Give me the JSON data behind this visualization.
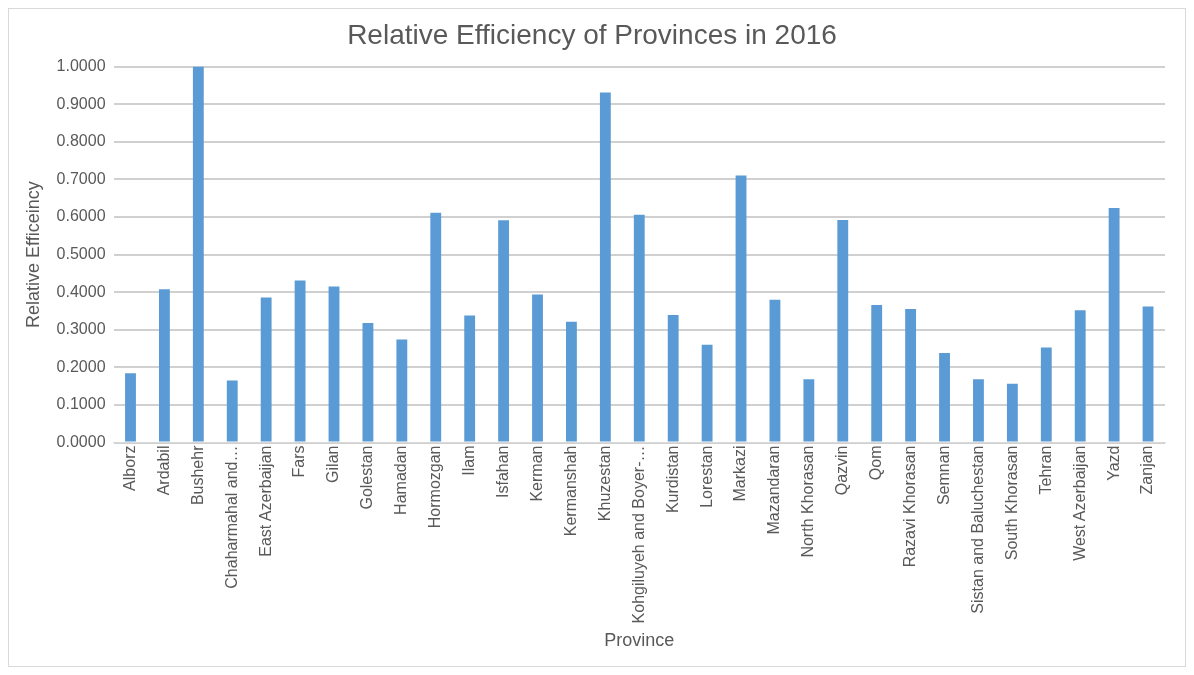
{
  "chart_data": {
    "type": "bar",
    "title": "Relative Efficiency of Provinces in 2016",
    "xlabel": "Province",
    "ylabel": "Relative Efficeincy",
    "categories": [
      "Alborz",
      "Ardabil",
      "Bushehr",
      "Chaharmahal and…",
      "East Azerbaijan",
      "Fars",
      "Gilan",
      "Golestan",
      "Hamadan",
      "Hormozgan",
      "Ilam",
      "Isfahan",
      "Kerman",
      "Kermanshah",
      "Khuzestan",
      "Kohgiluyeh and Boyer-…",
      "Kurdistan",
      "Lorestan",
      "Markazi",
      "Mazandaran",
      "North Khorasan",
      "Qazvin",
      "Qom",
      "Razavi Khorasan",
      "Semnan",
      "Sistan and Baluchestan",
      "South Khorasan",
      "Tehran",
      "West Azerbaijan",
      "Yazd",
      "Zanjan"
    ],
    "values": [
      0.184,
      0.408,
      1.0,
      0.165,
      0.386,
      0.431,
      0.415,
      0.318,
      0.274,
      0.611,
      0.338,
      0.591,
      0.394,
      0.321,
      0.931,
      0.606,
      0.339,
      0.26,
      0.71,
      0.38,
      0.168,
      0.592,
      0.366,
      0.355,
      0.238,
      0.168,
      0.156,
      0.253,
      0.352,
      0.624,
      0.362
    ],
    "color": "#5b9bd5",
    "ylim": [
      0,
      1
    ],
    "yticks": [
      {
        "value": 0,
        "label": "0.0000"
      },
      {
        "value": 0.1,
        "label": "0.1000"
      },
      {
        "value": 0.2,
        "label": "0.2000"
      },
      {
        "value": 0.3,
        "label": "0.3000"
      },
      {
        "value": 0.4,
        "label": "0.4000"
      },
      {
        "value": 0.5,
        "label": "0.5000"
      },
      {
        "value": 0.6,
        "label": "0.6000"
      },
      {
        "value": 0.7,
        "label": "0.7000"
      },
      {
        "value": 0.8,
        "label": "0.8000"
      },
      {
        "value": 0.9,
        "label": "0.9000"
      },
      {
        "value": 1,
        "label": "1.0000"
      }
    ],
    "grid": "y",
    "legend": false
  }
}
